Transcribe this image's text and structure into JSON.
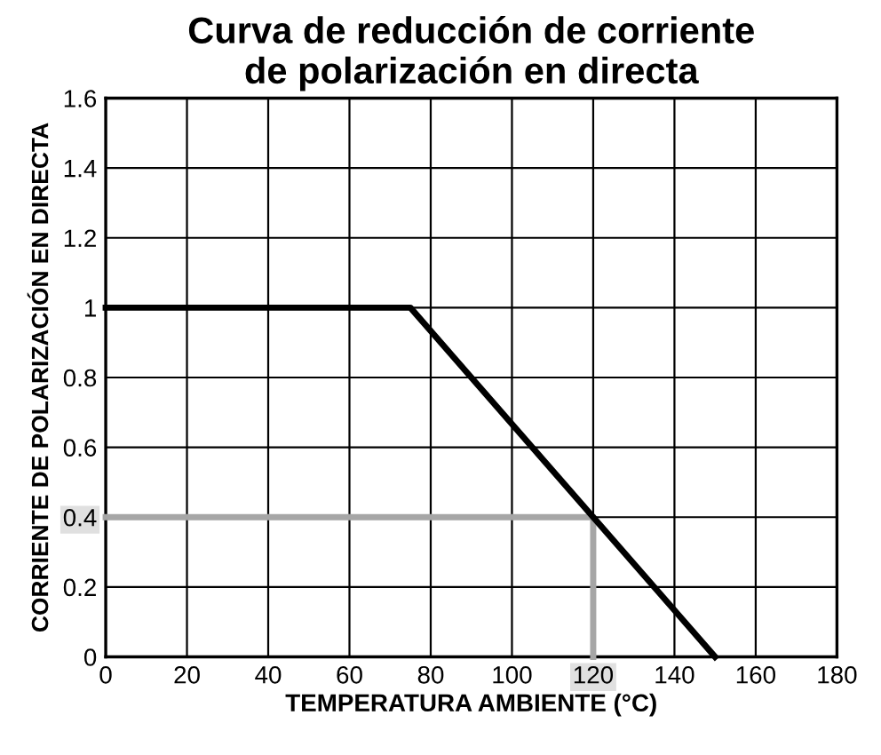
{
  "chart_data": {
    "type": "line",
    "title": "Curva de reducción de corriente\nde polarización en directa",
    "xlabel": "TEMPERATURA AMBIENTE (°C)",
    "ylabel": "CORRIENTE DE POLARIZACIÓN EN DIRECTA",
    "series": [
      {
        "color": "#000000",
        "x": [
          0,
          75,
          150
        ],
        "values": [
          1,
          1,
          0
        ]
      },
      {
        "color": "#a6a6a6",
        "x": [
          0,
          120,
          120
        ],
        "values": [
          0.4,
          0.4,
          0
        ]
      }
    ],
    "xlim": [
      0,
      180
    ],
    "ylim": [
      0,
      1.6
    ],
    "xticks": [
      0,
      20,
      40,
      60,
      80,
      100,
      120,
      140,
      160,
      180
    ],
    "yticks": [
      0,
      0.2,
      0.4,
      0.6,
      0.8,
      1,
      1.2,
      1.4,
      1.6
    ],
    "grid": true,
    "legend": false,
    "marker": "none",
    "line_style": "solid"
  }
}
